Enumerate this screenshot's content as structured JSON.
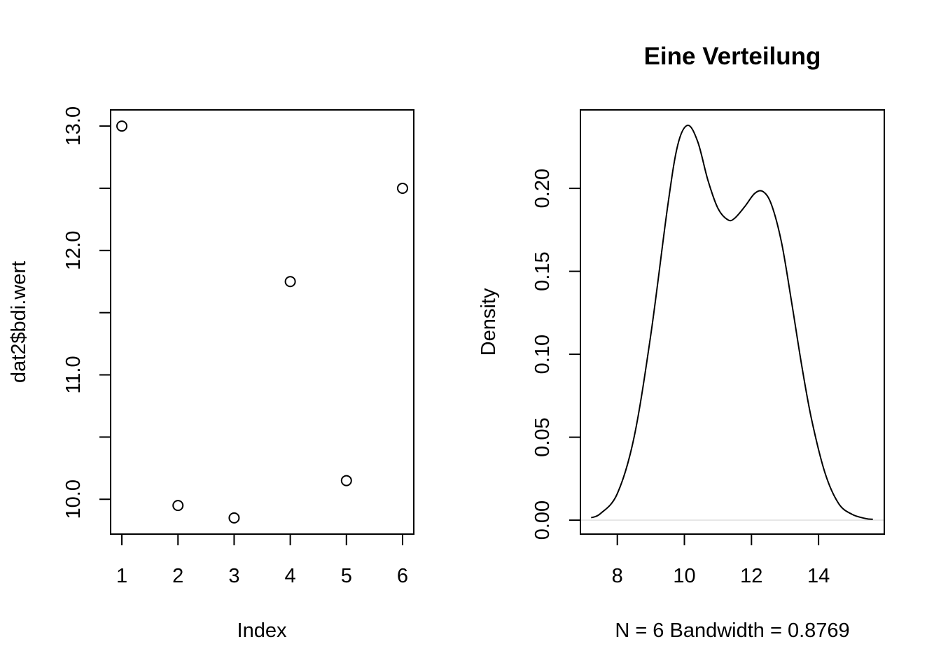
{
  "chart_data": [
    {
      "type": "scatter",
      "title": "",
      "xlabel": "Index",
      "ylabel": "dat2$bdi.wert",
      "x": [
        1,
        2,
        3,
        4,
        5,
        6
      ],
      "y": [
        13.0,
        9.95,
        9.85,
        11.75,
        10.15,
        12.5
      ],
      "xlim": [
        0.8,
        6.2
      ],
      "ylim": [
        9.72,
        13.13
      ],
      "x_ticks": [
        "1",
        "2",
        "3",
        "4",
        "5",
        "6"
      ],
      "y_ticks": [
        "10.0",
        "11.0",
        "12.0",
        "13.0"
      ],
      "y_minor_ticks": [
        10.5,
        11.5,
        12.5
      ],
      "marker": "open-circle",
      "grid": false
    },
    {
      "type": "line",
      "title": "Eine Verteilung",
      "xlabel": "N = 6   Bandwidth = 0.8769",
      "ylabel": "Density",
      "x": [
        7.22,
        7.5,
        8.0,
        8.5,
        9.0,
        9.5,
        9.8,
        10.1,
        10.4,
        10.7,
        11.0,
        11.3,
        11.5,
        11.8,
        12.1,
        12.35,
        12.6,
        12.9,
        13.2,
        13.5,
        13.8,
        14.2,
        14.6,
        15.0,
        15.4,
        15.62
      ],
      "y": [
        0.0015,
        0.004,
        0.016,
        0.05,
        0.112,
        0.189,
        0.226,
        0.238,
        0.228,
        0.205,
        0.188,
        0.181,
        0.182,
        0.189,
        0.197,
        0.198,
        0.19,
        0.167,
        0.131,
        0.093,
        0.06,
        0.028,
        0.01,
        0.0035,
        0.001,
        0.0005
      ],
      "xlim": [
        6.9,
        15.96
      ],
      "ylim": [
        -0.0084,
        0.2473
      ],
      "x_ticks": [
        "8",
        "10",
        "12",
        "14"
      ],
      "y_ticks": [
        "0.00",
        "0.05",
        "0.10",
        "0.15",
        "0.20"
      ],
      "zero_line_color": "#e6e6e6",
      "grid": false
    }
  ]
}
